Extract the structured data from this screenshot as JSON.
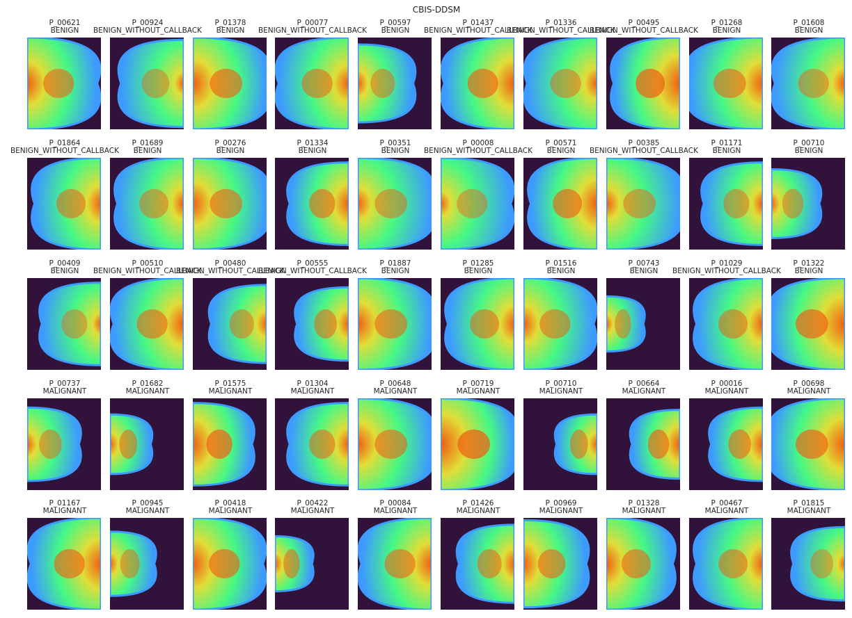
{
  "figure": {
    "title": "CBIS-DDSM"
  },
  "panels": [
    {
      "patient_id": "P_00621",
      "label": "BENIGN"
    },
    {
      "patient_id": "P_00924",
      "label": "BENIGN_WITHOUT_CALLBACK"
    },
    {
      "patient_id": "P_01378",
      "label": "BENIGN"
    },
    {
      "patient_id": "P_00077",
      "label": "BENIGN_WITHOUT_CALLBACK"
    },
    {
      "patient_id": "P_00597",
      "label": "BENIGN"
    },
    {
      "patient_id": "P_01437",
      "label": "BENIGN_WITHOUT_CALLBACK"
    },
    {
      "patient_id": "P_01336",
      "label": "BENIGN_WITHOUT_CALLBACK"
    },
    {
      "patient_id": "P_00495",
      "label": "BENIGN_WITHOUT_CALLBACK"
    },
    {
      "patient_id": "P_01268",
      "label": "BENIGN"
    },
    {
      "patient_id": "P_01608",
      "label": "BENIGN"
    },
    {
      "patient_id": "P_01864",
      "label": "BENIGN_WITHOUT_CALLBACK"
    },
    {
      "patient_id": "P_01689",
      "label": "BENIGN"
    },
    {
      "patient_id": "P_00276",
      "label": "BENIGN"
    },
    {
      "patient_id": "P_01334",
      "label": "BENIGN"
    },
    {
      "patient_id": "P_00351",
      "label": "BENIGN"
    },
    {
      "patient_id": "P_00008",
      "label": "BENIGN_WITHOUT_CALLBACK"
    },
    {
      "patient_id": "P_00571",
      "label": "BENIGN"
    },
    {
      "patient_id": "P_00385",
      "label": "BENIGN_WITHOUT_CALLBACK"
    },
    {
      "patient_id": "P_01171",
      "label": "BENIGN"
    },
    {
      "patient_id": "P_00710",
      "label": "BENIGN"
    },
    {
      "patient_id": "P_00409",
      "label": "BENIGN"
    },
    {
      "patient_id": "P_00510",
      "label": "BENIGN_WITHOUT_CALLBACK"
    },
    {
      "patient_id": "P_00480",
      "label": "BENIGN_WITHOUT_CALLBACK"
    },
    {
      "patient_id": "P_00555",
      "label": "BENIGN_WITHOUT_CALLBACK"
    },
    {
      "patient_id": "P_01887",
      "label": "BENIGN"
    },
    {
      "patient_id": "P_01285",
      "label": "BENIGN"
    },
    {
      "patient_id": "P_01516",
      "label": "BENIGN"
    },
    {
      "patient_id": "P_00743",
      "label": "BENIGN"
    },
    {
      "patient_id": "P_01029",
      "label": "BENIGN_WITHOUT_CALLBACK"
    },
    {
      "patient_id": "P_01322",
      "label": "BENIGN"
    },
    {
      "patient_id": "P_00737",
      "label": "MALIGNANT"
    },
    {
      "patient_id": "P_01682",
      "label": "MALIGNANT"
    },
    {
      "patient_id": "P_01575",
      "label": "MALIGNANT"
    },
    {
      "patient_id": "P_01304",
      "label": "MALIGNANT"
    },
    {
      "patient_id": "P_00648",
      "label": "MALIGNANT"
    },
    {
      "patient_id": "P_00719",
      "label": "MALIGNANT"
    },
    {
      "patient_id": "P_00710",
      "label": "MALIGNANT"
    },
    {
      "patient_id": "P_00664",
      "label": "MALIGNANT"
    },
    {
      "patient_id": "P_00016",
      "label": "MALIGNANT"
    },
    {
      "patient_id": "P_00698",
      "label": "MALIGNANT"
    },
    {
      "patient_id": "P_01167",
      "label": "MALIGNANT"
    },
    {
      "patient_id": "P_00945",
      "label": "MALIGNANT"
    },
    {
      "patient_id": "P_00418",
      "label": "MALIGNANT"
    },
    {
      "patient_id": "P_00422",
      "label": "MALIGNANT"
    },
    {
      "patient_id": "P_00084",
      "label": "MALIGNANT"
    },
    {
      "patient_id": "P_01426",
      "label": "MALIGNANT"
    },
    {
      "patient_id": "P_00969",
      "label": "MALIGNANT"
    },
    {
      "patient_id": "P_01328",
      "label": "MALIGNANT"
    },
    {
      "patient_id": "P_00467",
      "label": "MALIGNANT"
    },
    {
      "patient_id": "P_01815",
      "label": "MALIGNANT"
    }
  ],
  "colormap": {
    "name": "turbo",
    "background": "#30123b",
    "edge": "#3e9bfe",
    "tissue": "#46f884",
    "dense": "#e1dd37",
    "core": "#f05b12"
  }
}
